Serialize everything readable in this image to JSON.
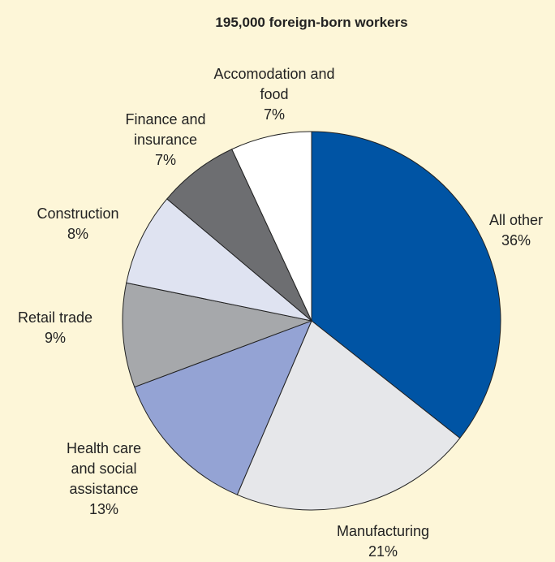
{
  "chart_data": {
    "type": "pie",
    "title": "195,000 foreign-born workers",
    "categories": [
      "All other",
      "Manufacturing",
      "Health care and social assistance",
      "Retail trade",
      "Construction",
      "Finance and insurance",
      "Accomodation and food"
    ],
    "values": [
      36,
      21,
      13,
      9,
      8,
      7,
      7
    ],
    "value_labels": [
      "36%",
      "21%",
      "13%",
      "9%",
      "8%",
      "7%",
      "7%"
    ],
    "colors": [
      "#0054a4",
      "#e6e7ea",
      "#94a3d4",
      "#a6a8ab",
      "#dfe3f1",
      "#6d6e71",
      "#ffffff"
    ]
  }
}
